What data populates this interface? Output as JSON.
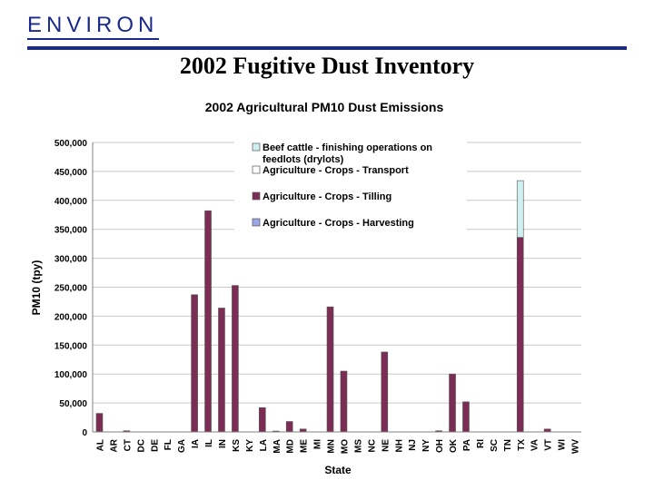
{
  "header": {
    "logo_text": "ENVIRON",
    "slide_title": "2002 Fugitive Dust Inventory"
  },
  "colors": {
    "brand": "#1a2a8c",
    "tilling": "#7b2d55",
    "transport": "#ffffff",
    "feedlots": "#cfeef0",
    "harvesting": "#9aa6e6",
    "grid": "#c8c8c8"
  },
  "chart_data": {
    "type": "bar",
    "stacked": true,
    "title": "2002 Agricultural PM10 Dust Emissions",
    "xlabel": "State",
    "ylabel": "PM10 (tpy)",
    "ylim": [
      0,
      500000
    ],
    "yticks": [
      "0",
      "50,000",
      "100,000",
      "150,000",
      "200,000",
      "250,000",
      "300,000",
      "350,000",
      "400,000",
      "450,000",
      "500,000"
    ],
    "grid": true,
    "legend_position": "top-right",
    "categories": [
      "AL",
      "AR",
      "CT",
      "DC",
      "DE",
      "FL",
      "GA",
      "IA",
      "IL",
      "IN",
      "KS",
      "KY",
      "LA",
      "MA",
      "MD",
      "ME",
      "MI",
      "MN",
      "MO",
      "MS",
      "NC",
      "NE",
      "NH",
      "NJ",
      "NY",
      "OH",
      "OK",
      "PA",
      "RI",
      "SC",
      "TN",
      "TX",
      "VA",
      "VT",
      "WI",
      "WV"
    ],
    "series": [
      {
        "name": "Agriculture - Crops - Tilling",
        "color_key": "tilling",
        "values": [
          32000,
          0,
          2000,
          0,
          0,
          0,
          0,
          237000,
          382000,
          214000,
          253000,
          0,
          42000,
          1500,
          18000,
          5000,
          0,
          216000,
          105000,
          0,
          0,
          138000,
          0,
          0,
          0,
          2000,
          100000,
          52000,
          0,
          0,
          0,
          336000,
          0,
          5000,
          0,
          0
        ]
      },
      {
        "name": "Beef cattle - finishing operations on feedlots (drylots)",
        "color_key": "feedlots",
        "values": [
          0,
          0,
          0,
          0,
          0,
          0,
          0,
          0,
          0,
          0,
          0,
          0,
          0,
          0,
          0,
          0,
          0,
          0,
          0,
          0,
          0,
          0,
          0,
          0,
          0,
          0,
          0,
          0,
          0,
          0,
          0,
          98000,
          0,
          0,
          0,
          0
        ]
      },
      {
        "name": "Agriculture - Crops - Transport",
        "color_key": "transport",
        "values": [
          0,
          0,
          0,
          0,
          0,
          0,
          0,
          0,
          0,
          0,
          0,
          0,
          0,
          0,
          0,
          0,
          0,
          0,
          0,
          0,
          0,
          0,
          0,
          0,
          0,
          0,
          0,
          0,
          0,
          0,
          0,
          0,
          0,
          0,
          0,
          0
        ]
      },
      {
        "name": "Agriculture - Crops - Harvesting",
        "color_key": "harvesting",
        "values": [
          0,
          0,
          0,
          0,
          0,
          0,
          0,
          0,
          0,
          0,
          0,
          0,
          0,
          0,
          0,
          0,
          0,
          0,
          0,
          0,
          0,
          0,
          0,
          0,
          0,
          0,
          0,
          0,
          0,
          0,
          0,
          0,
          0,
          0,
          0,
          0
        ]
      }
    ],
    "legend": [
      {
        "lines": [
          "Beef cattle - finishing operations on",
          "feedlots (drylots)"
        ],
        "color_key": "feedlots"
      },
      {
        "lines": [
          "Agriculture - Crops - Transport"
        ],
        "color_key": "transport"
      },
      {
        "lines": [
          "Agriculture - Crops - Tilling"
        ],
        "color_key": "tilling"
      },
      {
        "lines": [
          "Agriculture - Crops - Harvesting"
        ],
        "color_key": "harvesting"
      }
    ]
  }
}
